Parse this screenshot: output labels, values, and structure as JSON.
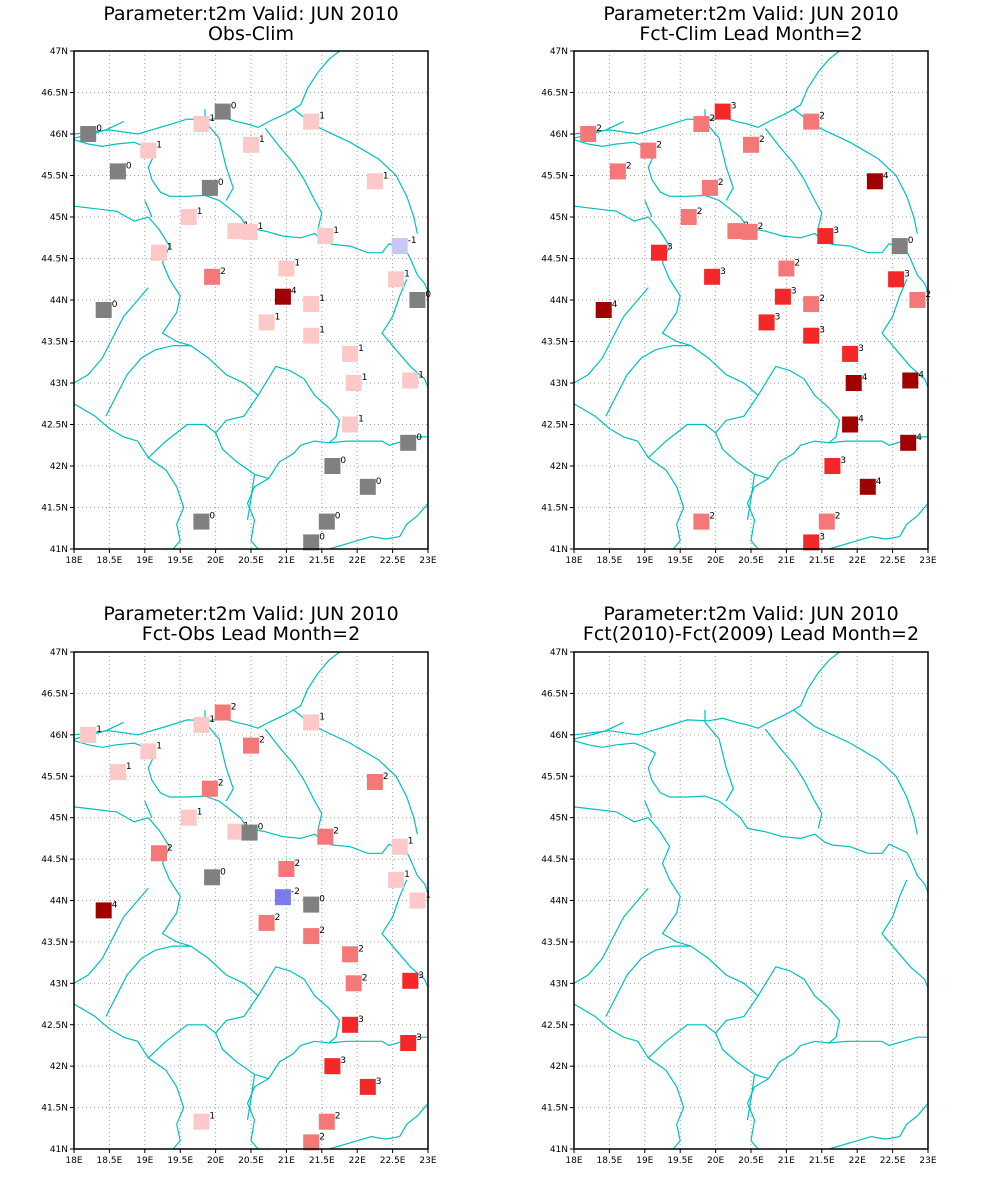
{
  "colors": {
    "c_-2": "#7b7bf0",
    "c_-1": "#c8c8f8",
    "c_0": "#808080",
    "c_1": "#fcc8c8",
    "c_2": "#f47878",
    "c_3": "#f42828",
    "c_4": "#a00000",
    "coast": "#00c0c0",
    "grid": "#a0a0a0"
  },
  "axes": {
    "lon_range": [
      18,
      23
    ],
    "lat_range": [
      41,
      47
    ],
    "x_ticks": [
      "18E",
      "18.5E",
      "19E",
      "19.5E",
      "20E",
      "20.5E",
      "21E",
      "21.5E",
      "22E",
      "22.5E",
      "23E"
    ],
    "y_ticks": [
      "41N",
      "41.5N",
      "42N",
      "42.5N",
      "43N",
      "43.5N",
      "44N",
      "44.5N",
      "45N",
      "45.5N",
      "46N",
      "46.5N",
      "47N"
    ]
  },
  "panels": [
    {
      "title1": "Parameter:t2m Valid: JUN 2010",
      "title2": "Obs-Clim",
      "stations": [
        {
          "lon": 18.2,
          "lat": 46.0,
          "v": "0"
        },
        {
          "lon": 20.1,
          "lat": 46.27,
          "v": "0"
        },
        {
          "lon": 19.8,
          "lat": 46.12,
          "v": "1"
        },
        {
          "lon": 21.35,
          "lat": 46.15,
          "v": "1"
        },
        {
          "lon": 20.5,
          "lat": 45.87,
          "v": "1"
        },
        {
          "lon": 19.05,
          "lat": 45.8,
          "v": "1"
        },
        {
          "lon": 18.62,
          "lat": 45.55,
          "v": "0"
        },
        {
          "lon": 19.92,
          "lat": 45.35,
          "v": "0"
        },
        {
          "lon": 22.25,
          "lat": 45.43,
          "v": "1"
        },
        {
          "lon": 19.62,
          "lat": 45.0,
          "v": "1"
        },
        {
          "lon": 20.28,
          "lat": 44.83,
          "v": "1"
        },
        {
          "lon": 20.48,
          "lat": 44.82,
          "v": "1"
        },
        {
          "lon": 21.55,
          "lat": 44.77,
          "v": "1"
        },
        {
          "lon": 22.6,
          "lat": 44.65,
          "v": "-1"
        },
        {
          "lon": 19.2,
          "lat": 44.57,
          "v": "1"
        },
        {
          "lon": 21.0,
          "lat": 44.38,
          "v": "1"
        },
        {
          "lon": 19.95,
          "lat": 44.28,
          "v": "2"
        },
        {
          "lon": 22.55,
          "lat": 44.25,
          "v": "1"
        },
        {
          "lon": 20.95,
          "lat": 44.04,
          "v": "4"
        },
        {
          "lon": 21.35,
          "lat": 43.95,
          "v": "1"
        },
        {
          "lon": 22.85,
          "lat": 44.0,
          "v": "0"
        },
        {
          "lon": 18.42,
          "lat": 43.88,
          "v": "0"
        },
        {
          "lon": 20.72,
          "lat": 43.73,
          "v": "1"
        },
        {
          "lon": 21.35,
          "lat": 43.57,
          "v": "1"
        },
        {
          "lon": 21.9,
          "lat": 43.35,
          "v": "1"
        },
        {
          "lon": 21.95,
          "lat": 43.0,
          "v": "1"
        },
        {
          "lon": 22.75,
          "lat": 43.03,
          "v": "1"
        },
        {
          "lon": 21.9,
          "lat": 42.5,
          "v": "1"
        },
        {
          "lon": 22.72,
          "lat": 42.28,
          "v": "0"
        },
        {
          "lon": 21.65,
          "lat": 42.0,
          "v": "0"
        },
        {
          "lon": 22.15,
          "lat": 41.75,
          "v": "0"
        },
        {
          "lon": 19.8,
          "lat": 41.33,
          "v": "0"
        },
        {
          "lon": 21.57,
          "lat": 41.33,
          "v": "0"
        },
        {
          "lon": 21.35,
          "lat": 41.08,
          "v": "0"
        }
      ]
    },
    {
      "title1": "Parameter:t2m Valid: JUN 2010",
      "title2": "Fct-Clim Lead Month=2",
      "stations": [
        {
          "lon": 18.2,
          "lat": 46.0,
          "v": "2"
        },
        {
          "lon": 20.1,
          "lat": 46.27,
          "v": "3"
        },
        {
          "lon": 19.8,
          "lat": 46.12,
          "v": "2"
        },
        {
          "lon": 21.35,
          "lat": 46.15,
          "v": "2"
        },
        {
          "lon": 20.5,
          "lat": 45.87,
          "v": "2"
        },
        {
          "lon": 19.05,
          "lat": 45.8,
          "v": "2"
        },
        {
          "lon": 18.62,
          "lat": 45.55,
          "v": "2"
        },
        {
          "lon": 19.92,
          "lat": 45.35,
          "v": "2"
        },
        {
          "lon": 22.25,
          "lat": 45.43,
          "v": "4"
        },
        {
          "lon": 19.62,
          "lat": 45.0,
          "v": "2"
        },
        {
          "lon": 20.28,
          "lat": 44.83,
          "v": "2"
        },
        {
          "lon": 20.48,
          "lat": 44.82,
          "v": "2"
        },
        {
          "lon": 21.55,
          "lat": 44.77,
          "v": "3"
        },
        {
          "lon": 22.6,
          "lat": 44.65,
          "v": "0"
        },
        {
          "lon": 19.2,
          "lat": 44.57,
          "v": "3"
        },
        {
          "lon": 21.0,
          "lat": 44.38,
          "v": "2"
        },
        {
          "lon": 19.95,
          "lat": 44.28,
          "v": "3"
        },
        {
          "lon": 22.55,
          "lat": 44.25,
          "v": "3"
        },
        {
          "lon": 20.95,
          "lat": 44.04,
          "v": "3"
        },
        {
          "lon": 21.35,
          "lat": 43.95,
          "v": "2"
        },
        {
          "lon": 22.85,
          "lat": 44.0,
          "v": "2"
        },
        {
          "lon": 18.42,
          "lat": 43.88,
          "v": "4"
        },
        {
          "lon": 20.72,
          "lat": 43.73,
          "v": "3"
        },
        {
          "lon": 21.35,
          "lat": 43.57,
          "v": "3"
        },
        {
          "lon": 21.9,
          "lat": 43.35,
          "v": "3"
        },
        {
          "lon": 21.95,
          "lat": 43.0,
          "v": "4"
        },
        {
          "lon": 22.75,
          "lat": 43.03,
          "v": "4"
        },
        {
          "lon": 21.9,
          "lat": 42.5,
          "v": "4"
        },
        {
          "lon": 22.72,
          "lat": 42.28,
          "v": "4"
        },
        {
          "lon": 21.65,
          "lat": 42.0,
          "v": "3"
        },
        {
          "lon": 22.15,
          "lat": 41.75,
          "v": "4"
        },
        {
          "lon": 19.8,
          "lat": 41.33,
          "v": "2"
        },
        {
          "lon": 21.57,
          "lat": 41.33,
          "v": "2"
        },
        {
          "lon": 21.35,
          "lat": 41.08,
          "v": "3"
        }
      ]
    },
    {
      "title1": "Parameter:t2m Valid: JUN 2010",
      "title2": "Fct-Obs Lead Month=2",
      "stations": [
        {
          "lon": 18.2,
          "lat": 46.0,
          "v": "1"
        },
        {
          "lon": 20.1,
          "lat": 46.27,
          "v": "2"
        },
        {
          "lon": 19.8,
          "lat": 46.12,
          "v": "1"
        },
        {
          "lon": 21.35,
          "lat": 46.15,
          "v": "1"
        },
        {
          "lon": 20.5,
          "lat": 45.87,
          "v": "2"
        },
        {
          "lon": 19.05,
          "lat": 45.8,
          "v": "1"
        },
        {
          "lon": 18.62,
          "lat": 45.55,
          "v": "1"
        },
        {
          "lon": 19.92,
          "lat": 45.35,
          "v": "2"
        },
        {
          "lon": 22.25,
          "lat": 45.43,
          "v": "2"
        },
        {
          "lon": 19.62,
          "lat": 45.0,
          "v": "1"
        },
        {
          "lon": 20.28,
          "lat": 44.83,
          "v": "1"
        },
        {
          "lon": 20.48,
          "lat": 44.82,
          "v": "0"
        },
        {
          "lon": 21.55,
          "lat": 44.77,
          "v": "2"
        },
        {
          "lon": 22.6,
          "lat": 44.65,
          "v": "1"
        },
        {
          "lon": 19.2,
          "lat": 44.57,
          "v": "2"
        },
        {
          "lon": 21.0,
          "lat": 44.38,
          "v": "2"
        },
        {
          "lon": 19.95,
          "lat": 44.28,
          "v": "0"
        },
        {
          "lon": 22.55,
          "lat": 44.25,
          "v": "1"
        },
        {
          "lon": 20.95,
          "lat": 44.04,
          "v": "-2"
        },
        {
          "lon": 21.35,
          "lat": 43.95,
          "v": "0"
        },
        {
          "lon": 22.85,
          "lat": 44.0,
          "v": "1"
        },
        {
          "lon": 18.42,
          "lat": 43.88,
          "v": "4"
        },
        {
          "lon": 20.72,
          "lat": 43.73,
          "v": "2"
        },
        {
          "lon": 21.35,
          "lat": 43.57,
          "v": "2"
        },
        {
          "lon": 21.9,
          "lat": 43.35,
          "v": "2"
        },
        {
          "lon": 21.95,
          "lat": 43.0,
          "v": "2"
        },
        {
          "lon": 22.75,
          "lat": 43.03,
          "v": "3"
        },
        {
          "lon": 21.9,
          "lat": 42.5,
          "v": "3"
        },
        {
          "lon": 22.72,
          "lat": 42.28,
          "v": "3"
        },
        {
          "lon": 21.65,
          "lat": 42.0,
          "v": "3"
        },
        {
          "lon": 22.15,
          "lat": 41.75,
          "v": "3"
        },
        {
          "lon": 19.8,
          "lat": 41.33,
          "v": "1"
        },
        {
          "lon": 21.57,
          "lat": 41.33,
          "v": "2"
        },
        {
          "lon": 21.35,
          "lat": 41.08,
          "v": "2"
        }
      ]
    },
    {
      "title1": "Parameter:t2m Valid: JUN 2010",
      "title2": "Fct(2010)-Fct(2009) Lead Month=2",
      "stations": []
    }
  ]
}
